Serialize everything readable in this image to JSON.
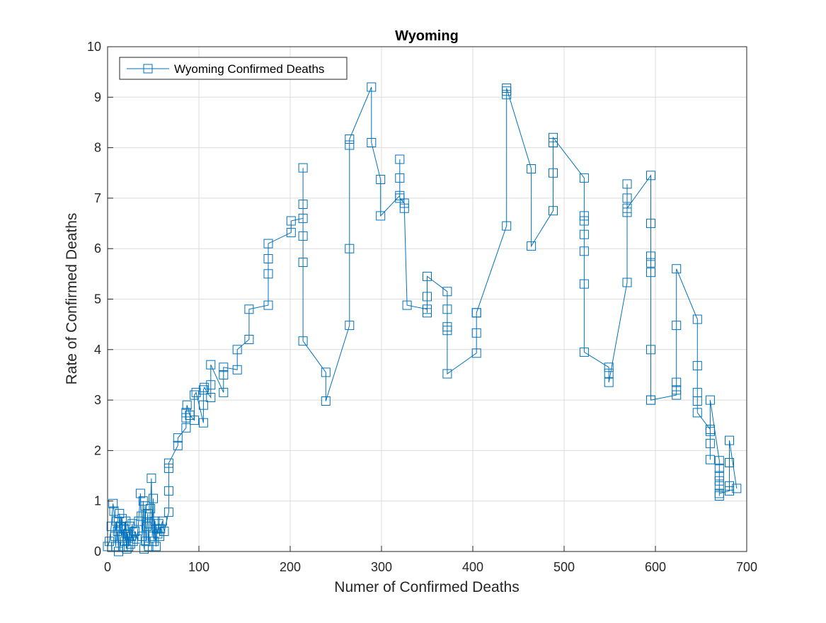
{
  "colors": {
    "series": "#0072BD",
    "grid": "#dcdcdc",
    "axis": "#262626",
    "background": "#ffffff"
  },
  "chart_data": {
    "type": "line",
    "marker": "square",
    "title": "Wyoming",
    "xlabel": "Numer of Confirmed Deaths",
    "ylabel": "Rate of Confirmed Deaths",
    "xlim": [
      0,
      700
    ],
    "ylim": [
      0,
      10
    ],
    "xticks": [
      "0",
      "100",
      "200",
      "300",
      "400",
      "500",
      "600",
      "700"
    ],
    "yticks": [
      "0",
      "1",
      "2",
      "3",
      "4",
      "5",
      "6",
      "7",
      "8",
      "9",
      "10"
    ],
    "grid": true,
    "legend": {
      "position": "top-left",
      "entries": [
        "Wyoming Confirmed Deaths"
      ]
    },
    "series": [
      {
        "name": "Wyoming Confirmed Deaths",
        "x": [
          0,
          2,
          4,
          6,
          7,
          8,
          9,
          10,
          11,
          12,
          13,
          14,
          15,
          16,
          17,
          18,
          19,
          20,
          21,
          22,
          23,
          24,
          25,
          26,
          27,
          28,
          30,
          32,
          34,
          36,
          37,
          38,
          39,
          40,
          41,
          42,
          43,
          44,
          45,
          46,
          47,
          48,
          49,
          50,
          51,
          52,
          53,
          54,
          55,
          56,
          57,
          58,
          60,
          62,
          67,
          67,
          67,
          67,
          77,
          77,
          86,
          86,
          86,
          87,
          90,
          95,
          95,
          97,
          105,
          105,
          105,
          106,
          113,
          113,
          113,
          127,
          127,
          127,
          142,
          142,
          155,
          155,
          176,
          176,
          176,
          176,
          201,
          201,
          214,
          214,
          214,
          214,
          214,
          214,
          239,
          239,
          265,
          265,
          265,
          265,
          289,
          289,
          299,
          299,
          320,
          320,
          320,
          320,
          325,
          325,
          328,
          350,
          350,
          350,
          350,
          372,
          372,
          372,
          372,
          372,
          404,
          404,
          404,
          404,
          437,
          437,
          437,
          437,
          464,
          464,
          488,
          488,
          488,
          488,
          522,
          522,
          522,
          522,
          522,
          522,
          522,
          549,
          549,
          549,
          569,
          569,
          569,
          569,
          569,
          595,
          595,
          595,
          595,
          595,
          595,
          595,
          595,
          623,
          623,
          623,
          623,
          623,
          646,
          646,
          646,
          646,
          646,
          660,
          660,
          660,
          660,
          660,
          670,
          670,
          670,
          670,
          670,
          670,
          670,
          681,
          681,
          681,
          681,
          689
        ],
        "y": [
          0.1,
          0.2,
          0.5,
          0.95,
          0.8,
          0.3,
          0.1,
          0.6,
          0.4,
          0.0,
          0.75,
          0.5,
          0.3,
          0.65,
          0.1,
          0.45,
          0.2,
          0.6,
          0.05,
          0.35,
          0.1,
          0.5,
          0.15,
          0.3,
          0.55,
          0.2,
          0.4,
          0.25,
          0.6,
          1.15,
          0.7,
          0.3,
          1.0,
          0.05,
          0.9,
          0.2,
          0.5,
          0.75,
          0.1,
          0.55,
          0.85,
          1.45,
          0.3,
          1.05,
          0.2,
          0.6,
          0.1,
          0.45,
          0.35,
          0.55,
          0.3,
          0.45,
          0.6,
          0.4,
          0.78,
          1.2,
          1.65,
          1.75,
          2.1,
          2.25,
          2.45,
          2.65,
          2.75,
          2.9,
          2.7,
          2.6,
          3.1,
          3.15,
          2.55,
          2.9,
          3.2,
          3.25,
          3.05,
          3.3,
          3.7,
          3.15,
          3.5,
          3.65,
          3.6,
          4.0,
          4.2,
          4.8,
          4.88,
          5.5,
          5.8,
          6.1,
          6.32,
          6.55,
          6.6,
          6.88,
          7.6,
          6.25,
          5.73,
          4.17,
          3.55,
          2.98,
          4.48,
          6.0,
          8.05,
          8.17,
          9.2,
          8.1,
          7.37,
          6.65,
          7.05,
          7.4,
          7.77,
          7.0,
          6.9,
          6.8,
          4.88,
          4.8,
          4.73,
          5.05,
          5.45,
          5.15,
          4.8,
          4.45,
          4.38,
          3.52,
          3.93,
          4.33,
          4.73,
          4.73,
          6.45,
          9.05,
          9.12,
          9.18,
          7.58,
          6.05,
          6.75,
          7.5,
          8.1,
          8.2,
          7.4,
          6.65,
          6.55,
          6.28,
          5.95,
          5.3,
          3.95,
          3.65,
          3.53,
          3.35,
          5.33,
          6.72,
          7.0,
          7.28,
          6.8,
          7.45,
          6.5,
          5.85,
          5.72,
          5.53,
          4.0,
          3.0,
          3.0,
          3.1,
          3.2,
          3.35,
          4.48,
          5.6,
          4.6,
          3.68,
          3.15,
          2.98,
          2.75,
          2.42,
          2.38,
          2.14,
          1.82,
          3.0,
          1.8,
          1.65,
          1.5,
          1.4,
          1.3,
          1.1,
          1.15,
          1.2,
          1.3,
          1.76,
          2.2,
          1.25
        ]
      }
    ]
  }
}
